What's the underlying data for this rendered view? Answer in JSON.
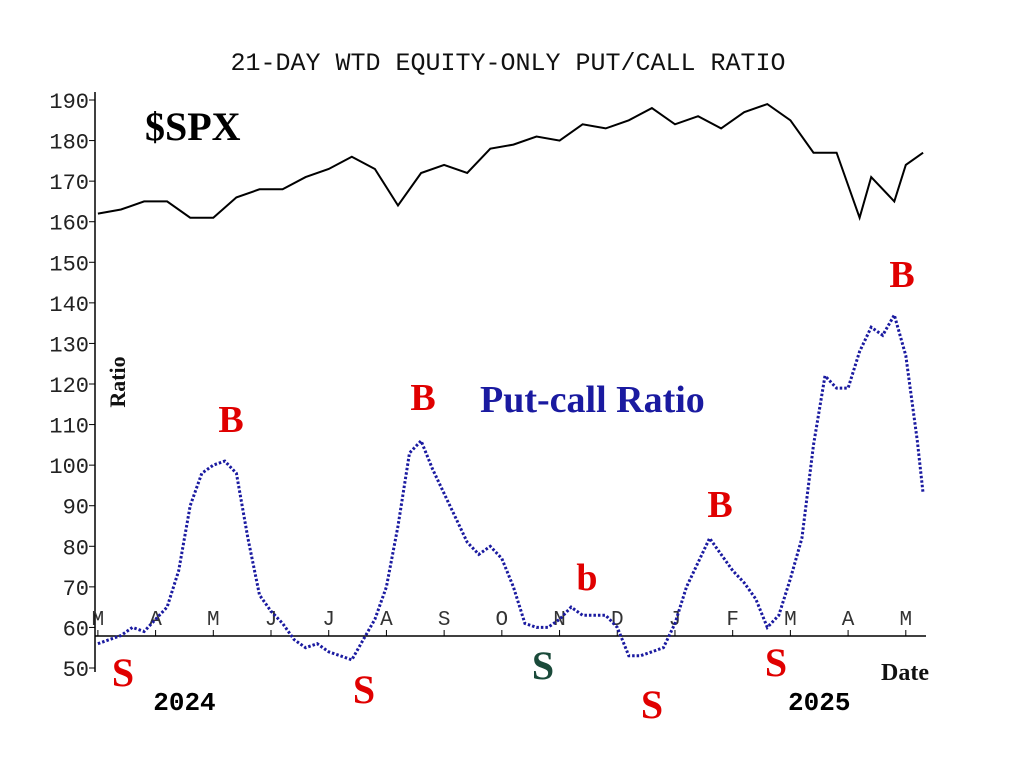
{
  "chart_data": {
    "type": "line",
    "title": "21-DAY WTD EQUITY-ONLY PUT/CALL RATIO",
    "y_label": "Ratio",
    "x_label": "Date",
    "xlim": [
      -0.05,
      14.35
    ],
    "xticks": [
      {
        "value": 0,
        "label": "M"
      },
      {
        "value": 1,
        "label": "A"
      },
      {
        "value": 2,
        "label": "M"
      },
      {
        "value": 3,
        "label": "J"
      },
      {
        "value": 4,
        "label": "J"
      },
      {
        "value": 5,
        "label": "A"
      },
      {
        "value": 6,
        "label": "S"
      },
      {
        "value": 7,
        "label": "O"
      },
      {
        "value": 8,
        "label": "N"
      },
      {
        "value": 9,
        "label": "D"
      },
      {
        "value": 10,
        "label": "J"
      },
      {
        "value": 11,
        "label": "F"
      },
      {
        "value": 12,
        "label": "M"
      },
      {
        "value": 13,
        "label": "A"
      },
      {
        "value": 14,
        "label": "M"
      }
    ],
    "years": [
      {
        "value": 1.5,
        "label": "2024"
      },
      {
        "value": 12.5,
        "label": "2025"
      }
    ],
    "ylim": [
      50,
      190
    ],
    "yticks": [
      50,
      60,
      70,
      80,
      90,
      100,
      110,
      120,
      130,
      140,
      150,
      160,
      170,
      180,
      190
    ],
    "series": [
      {
        "name": "$SPX",
        "color": "#000000",
        "x": [
          0,
          0.4,
          0.8,
          1.2,
          1.6,
          2.0,
          2.4,
          2.8,
          3.2,
          3.6,
          4.0,
          4.4,
          4.8,
          5.2,
          5.6,
          6.0,
          6.4,
          6.8,
          7.2,
          7.6,
          8.0,
          8.4,
          8.8,
          9.2,
          9.6,
          10.0,
          10.4,
          10.8,
          11.2,
          11.6,
          12.0,
          12.4,
          12.8,
          13.2,
          13.4,
          13.8,
          14.0,
          14.3
        ],
        "values": [
          162,
          163,
          165,
          165,
          161,
          161,
          166,
          168,
          168,
          171,
          173,
          176,
          173,
          164,
          172,
          174,
          172,
          178,
          179,
          181,
          180,
          184,
          183,
          185,
          188,
          184,
          186,
          183,
          187,
          189,
          185,
          177,
          177,
          161,
          171,
          165,
          174,
          177
        ]
      },
      {
        "name": "Put-call Ratio",
        "color": "#1a1aa0",
        "x": [
          0,
          0.2,
          0.4,
          0.6,
          0.8,
          1.0,
          1.2,
          1.4,
          1.6,
          1.8,
          2.0,
          2.2,
          2.4,
          2.6,
          2.8,
          3.0,
          3.2,
          3.4,
          3.6,
          3.8,
          4.0,
          4.2,
          4.4,
          4.6,
          4.8,
          5.0,
          5.2,
          5.4,
          5.6,
          5.8,
          6.0,
          6.2,
          6.4,
          6.6,
          6.8,
          7.0,
          7.2,
          7.4,
          7.6,
          7.8,
          8.0,
          8.2,
          8.4,
          8.6,
          8.8,
          9.0,
          9.2,
          9.4,
          9.6,
          9.8,
          10.0,
          10.2,
          10.4,
          10.6,
          10.8,
          11.0,
          11.2,
          11.4,
          11.6,
          11.8,
          12.0,
          12.2,
          12.4,
          12.6,
          12.8,
          13.0,
          13.2,
          13.4,
          13.6,
          13.8,
          14.0,
          14.2,
          14.3
        ],
        "values": [
          56,
          57,
          58,
          60,
          59,
          62,
          65,
          74,
          90,
          98,
          100,
          101,
          98,
          82,
          68,
          64,
          61,
          57,
          55,
          56,
          54,
          53,
          52,
          57,
          62,
          70,
          85,
          103,
          106,
          99,
          93,
          87,
          81,
          78,
          80,
          77,
          70,
          61,
          60,
          60,
          62,
          65,
          63,
          63,
          63,
          60,
          53,
          53,
          54,
          55,
          61,
          70,
          76,
          82,
          78,
          74,
          71,
          67,
          60,
          63,
          72,
          82,
          105,
          122,
          119,
          119,
          128,
          134,
          132,
          137,
          127,
          106,
          93
        ]
      }
    ],
    "annotations": [
      {
        "text": "$SPX",
        "color": "#000000"
      },
      {
        "text": "Put-call Ratio",
        "color": "#1a1aa0"
      },
      {
        "text": "B",
        "color": "#e00000"
      },
      {
        "text": "B",
        "color": "#e00000"
      },
      {
        "text": "b",
        "color": "#e00000"
      },
      {
        "text": "B",
        "color": "#e00000"
      },
      {
        "text": "B",
        "color": "#e00000"
      },
      {
        "text": "S",
        "color": "#e00000"
      },
      {
        "text": "S",
        "color": "#e00000"
      },
      {
        "text": "S",
        "color": "#1a4a3a"
      },
      {
        "text": "S",
        "color": "#e00000"
      },
      {
        "text": "S",
        "color": "#e00000"
      }
    ]
  }
}
